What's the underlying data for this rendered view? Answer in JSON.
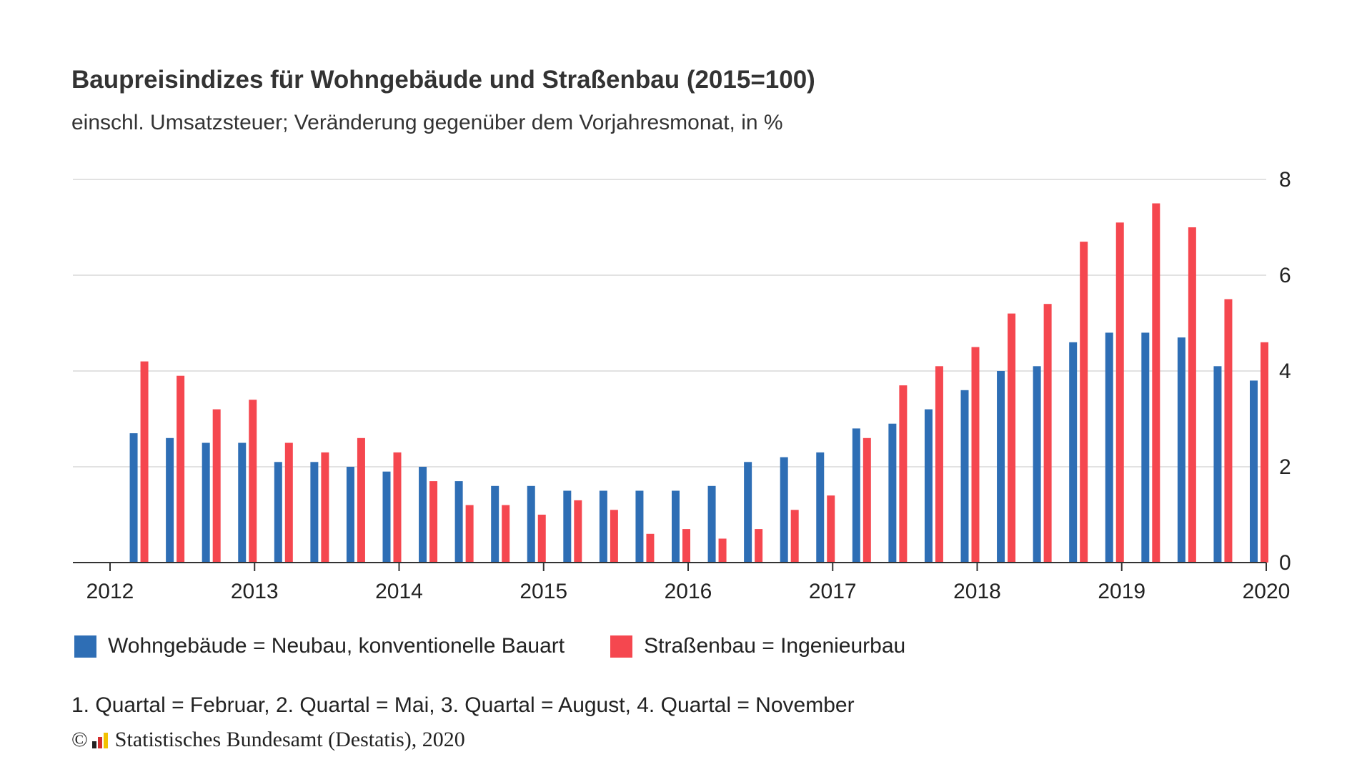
{
  "title": "Baupreisindizes für Wohngebäude und Straßenbau (2015=100)",
  "subtitle": "einschl. Umsatzsteuer; Veränderung gegenüber dem Vorjahresmonat, in %",
  "legend": [
    {
      "label": "Wohngebäude = Neubau, konventionelle Bauart",
      "color": "#2e6eb5"
    },
    {
      "label": "Straßenbau = Ingenieurbau",
      "color": "#f5474f"
    }
  ],
  "note": "1. Quartal = Februar, 2. Quartal = Mai, 3. Quartal = August, 4. Quartal = November",
  "copyright": {
    "symbol": "©",
    "text": "Statistisches Bundesamt (Destatis), 2020",
    "logo_colors": [
      "#222222",
      "#d32f2f",
      "#f2c200"
    ]
  },
  "chart_data": {
    "type": "bar",
    "title": "Baupreisindizes für Wohngebäude und Straßenbau (2015=100)",
    "subtitle": "einschl. Umsatzsteuer; Veränderung gegenüber dem Vorjahresmonat, in %",
    "x_ticks": [
      "2012",
      "2013",
      "2014",
      "2015",
      "2016",
      "2017",
      "2018",
      "2019",
      "2020"
    ],
    "categories": [
      "2012 Q1",
      "2012 Q2",
      "2012 Q3",
      "2012 Q4",
      "2013 Q1",
      "2013 Q2",
      "2013 Q3",
      "2013 Q4",
      "2014 Q1",
      "2014 Q2",
      "2014 Q3",
      "2014 Q4",
      "2015 Q1",
      "2015 Q2",
      "2015 Q3",
      "2015 Q4",
      "2016 Q1",
      "2016 Q2",
      "2016 Q3",
      "2016 Q4",
      "2017 Q1",
      "2017 Q2",
      "2017 Q3",
      "2017 Q4",
      "2018 Q1",
      "2018 Q2",
      "2018 Q3",
      "2018 Q4",
      "2019 Q1",
      "2019 Q2",
      "2019 Q3",
      "2019 Q4"
    ],
    "series": [
      {
        "name": "Wohngebäude = Neubau, konventionelle Bauart",
        "color": "#2e6eb5",
        "values": [
          2.7,
          2.6,
          2.5,
          2.5,
          2.1,
          2.1,
          2.0,
          1.9,
          2.0,
          1.7,
          1.6,
          1.6,
          1.5,
          1.5,
          1.5,
          1.5,
          1.6,
          2.1,
          2.2,
          2.3,
          2.8,
          2.9,
          3.2,
          3.6,
          4.0,
          4.1,
          4.6,
          4.8,
          4.8,
          4.7,
          4.1,
          3.8
        ]
      },
      {
        "name": "Straßenbau = Ingenieurbau",
        "color": "#f5474f",
        "values": [
          4.2,
          3.9,
          3.2,
          3.4,
          2.5,
          2.3,
          2.6,
          2.3,
          1.7,
          1.2,
          1.2,
          1.0,
          1.3,
          1.1,
          0.6,
          0.7,
          0.5,
          0.7,
          1.1,
          1.4,
          2.6,
          3.7,
          4.1,
          4.5,
          5.2,
          5.4,
          6.7,
          7.1,
          7.5,
          7.0,
          5.5,
          4.6
        ]
      }
    ],
    "y_ticks": [
      0,
      2,
      4,
      6,
      8
    ],
    "ylim": [
      0,
      8
    ],
    "grid": true,
    "y_axis_side": "right",
    "legend_position": "bottom"
  }
}
